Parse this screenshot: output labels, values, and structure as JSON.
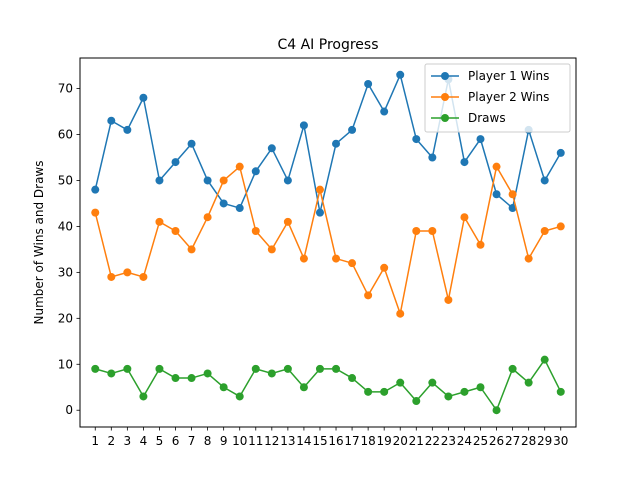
{
  "chart_data": {
    "type": "line",
    "title": "C4 AI Progress",
    "xlabel": "",
    "ylabel": "Number of Wins and Draws",
    "x": [
      1,
      2,
      3,
      4,
      5,
      6,
      7,
      8,
      9,
      10,
      11,
      12,
      13,
      14,
      15,
      16,
      17,
      18,
      19,
      20,
      21,
      22,
      23,
      24,
      25,
      26,
      27,
      28,
      29,
      30
    ],
    "xlim": [
      0.05,
      30.95
    ],
    "ylim": [
      -3.65,
      76.65
    ],
    "yticks": [
      0,
      10,
      20,
      30,
      40,
      50,
      60,
      70
    ],
    "grid": false,
    "legend_position": "upper right",
    "series": [
      {
        "name": "Player 1 Wins",
        "color": "#1f77b4",
        "values": [
          48,
          63,
          61,
          68,
          50,
          54,
          58,
          50,
          45,
          44,
          52,
          57,
          50,
          62,
          43,
          58,
          61,
          71,
          65,
          73,
          59,
          55,
          72,
          54,
          59,
          47,
          44,
          61,
          50,
          56
        ]
      },
      {
        "name": "Player 2 Wins",
        "color": "#ff7f0e",
        "values": [
          43,
          29,
          30,
          29,
          41,
          39,
          35,
          42,
          50,
          53,
          39,
          35,
          41,
          33,
          48,
          33,
          32,
          25,
          31,
          21,
          39,
          39,
          24,
          42,
          36,
          53,
          47,
          33,
          39,
          40
        ]
      },
      {
        "name": "Draws",
        "color": "#2ca02c",
        "values": [
          9,
          8,
          9,
          3,
          9,
          7,
          7,
          8,
          5,
          3,
          9,
          8,
          9,
          5,
          9,
          9,
          7,
          4,
          4,
          6,
          2,
          6,
          3,
          4,
          5,
          0,
          9,
          6,
          11,
          4
        ]
      }
    ]
  }
}
